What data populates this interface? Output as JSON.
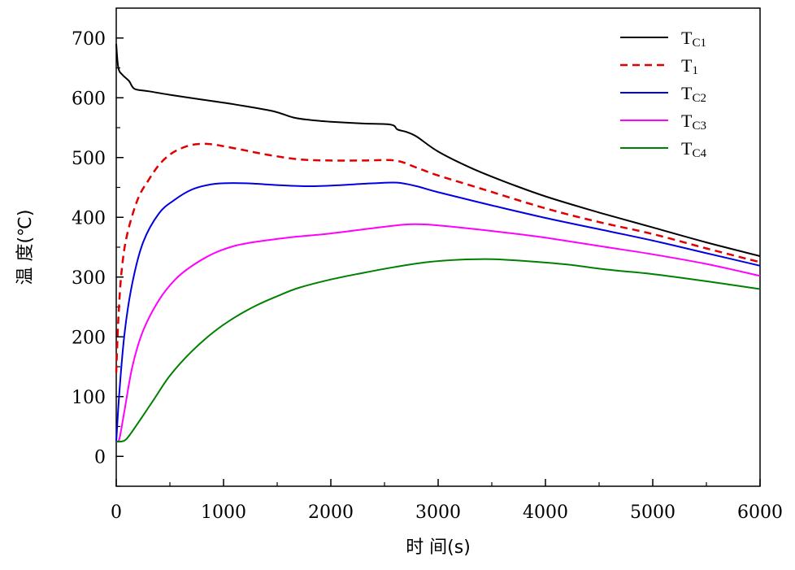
{
  "chart_data": {
    "type": "line",
    "xlabel": "时 间(s)",
    "ylabel": "温 度(℃)",
    "xlim": [
      0,
      6000
    ],
    "ylim": [
      -50,
      750
    ],
    "x_ticks": [
      0,
      1000,
      2000,
      3000,
      4000,
      5000,
      6000
    ],
    "y_ticks": [
      0,
      100,
      200,
      300,
      400,
      500,
      600,
      700
    ],
    "x_tick_labels": [
      "0",
      "1000",
      "2000",
      "3000",
      "4000",
      "5000",
      "6000"
    ],
    "y_tick_labels": [
      "0",
      "100",
      "200",
      "300",
      "400",
      "500",
      "600",
      "700"
    ],
    "grid": false,
    "legend_position": "top-right",
    "series": [
      {
        "name": "TC1",
        "label_main": "T",
        "label_sub": "C1",
        "color": "#000000",
        "dash": "solid",
        "points": [
          [
            0,
            690
          ],
          [
            20,
            650
          ],
          [
            60,
            638
          ],
          [
            120,
            628
          ],
          [
            170,
            615
          ],
          [
            300,
            611
          ],
          [
            500,
            605
          ],
          [
            800,
            597
          ],
          [
            1100,
            589
          ],
          [
            1450,
            578
          ],
          [
            1650,
            567
          ],
          [
            1800,
            563
          ],
          [
            2000,
            560
          ],
          [
            2300,
            557
          ],
          [
            2560,
            555
          ],
          [
            2620,
            547
          ],
          [
            2700,
            543
          ],
          [
            2800,
            535
          ],
          [
            3000,
            510
          ],
          [
            3300,
            483
          ],
          [
            3600,
            461
          ],
          [
            4000,
            435
          ],
          [
            4500,
            408
          ],
          [
            5000,
            383
          ],
          [
            5500,
            358
          ],
          [
            6000,
            335
          ]
        ]
      },
      {
        "name": "T1",
        "label_main": "T",
        "label_sub": "1",
        "color": "#e00000",
        "dash": "dashed",
        "points": [
          [
            0,
            140
          ],
          [
            20,
            230
          ],
          [
            50,
            310
          ],
          [
            100,
            370
          ],
          [
            200,
            430
          ],
          [
            300,
            462
          ],
          [
            400,
            488
          ],
          [
            500,
            505
          ],
          [
            600,
            515
          ],
          [
            700,
            521
          ],
          [
            800,
            523
          ],
          [
            900,
            522
          ],
          [
            1000,
            519
          ],
          [
            1200,
            512
          ],
          [
            1400,
            505
          ],
          [
            1700,
            497
          ],
          [
            2000,
            495
          ],
          [
            2300,
            495
          ],
          [
            2600,
            495
          ],
          [
            2800,
            483
          ],
          [
            3000,
            470
          ],
          [
            3400,
            448
          ],
          [
            4000,
            415
          ],
          [
            4500,
            392
          ],
          [
            5000,
            372
          ],
          [
            5500,
            348
          ],
          [
            6000,
            325
          ]
        ]
      },
      {
        "name": "TC2",
        "label_main": "T",
        "label_sub": "C2",
        "color": "#0000e0",
        "dash": "solid",
        "points": [
          [
            0,
            25
          ],
          [
            30,
            110
          ],
          [
            80,
            210
          ],
          [
            150,
            290
          ],
          [
            250,
            358
          ],
          [
            400,
            407
          ],
          [
            550,
            430
          ],
          [
            700,
            446
          ],
          [
            850,
            454
          ],
          [
            1000,
            457
          ],
          [
            1200,
            457
          ],
          [
            1500,
            454
          ],
          [
            1800,
            452
          ],
          [
            2100,
            454
          ],
          [
            2400,
            457
          ],
          [
            2620,
            458
          ],
          [
            2800,
            452
          ],
          [
            3000,
            442
          ],
          [
            3500,
            420
          ],
          [
            4000,
            399
          ],
          [
            4500,
            380
          ],
          [
            5000,
            361
          ],
          [
            5500,
            340
          ],
          [
            6000,
            319
          ]
        ]
      },
      {
        "name": "TC3",
        "label_main": "T",
        "label_sub": "C3",
        "color": "#ff00ff",
        "dash": "solid",
        "points": [
          [
            0,
            25
          ],
          [
            30,
            30
          ],
          [
            80,
            80
          ],
          [
            150,
            150
          ],
          [
            250,
            210
          ],
          [
            400,
            262
          ],
          [
            550,
            296
          ],
          [
            700,
            318
          ],
          [
            900,
            339
          ],
          [
            1100,
            352
          ],
          [
            1300,
            359
          ],
          [
            1600,
            366
          ],
          [
            2000,
            373
          ],
          [
            2400,
            382
          ],
          [
            2700,
            388
          ],
          [
            2900,
            388
          ],
          [
            3200,
            383
          ],
          [
            3600,
            375
          ],
          [
            4000,
            366
          ],
          [
            4500,
            352
          ],
          [
            5000,
            338
          ],
          [
            5500,
            322
          ],
          [
            6000,
            302
          ]
        ]
      },
      {
        "name": "TC4",
        "label_main": "T",
        "label_sub": "C4",
        "color": "#008000",
        "dash": "solid",
        "points": [
          [
            0,
            25
          ],
          [
            50,
            25
          ],
          [
            100,
            30
          ],
          [
            200,
            55
          ],
          [
            350,
            95
          ],
          [
            500,
            135
          ],
          [
            700,
            175
          ],
          [
            900,
            207
          ],
          [
            1100,
            232
          ],
          [
            1300,
            252
          ],
          [
            1500,
            268
          ],
          [
            1700,
            282
          ],
          [
            2000,
            296
          ],
          [
            2300,
            307
          ],
          [
            2600,
            317
          ],
          [
            2900,
            325
          ],
          [
            3200,
            329
          ],
          [
            3500,
            330
          ],
          [
            3800,
            327
          ],
          [
            4200,
            321
          ],
          [
            4600,
            312
          ],
          [
            5000,
            305
          ],
          [
            5500,
            293
          ],
          [
            6000,
            280
          ]
        ]
      }
    ]
  }
}
